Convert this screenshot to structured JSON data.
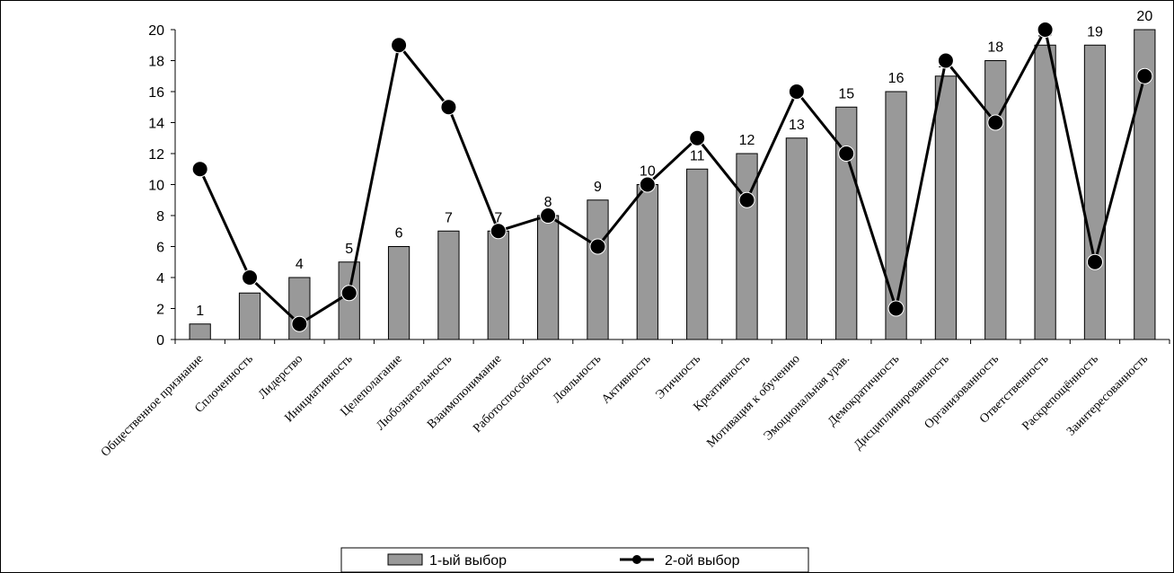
{
  "chart_data": {
    "type": "bar",
    "categories": [
      "Общественное признание",
      "Сплоченность",
      "Лидерство",
      "Инициативность",
      "Целеполагание",
      "Любознательность",
      "Взаимопонимание",
      "Работоспособность",
      "Лояльность",
      "Активность",
      "Этичность",
      "Креативность",
      "Мотивация к обучению",
      "Эмоциональная урав.",
      "Демократичность",
      "Дисциплинированность",
      "Организованность",
      "Ответственность",
      "Раскрепощённость",
      "Заинтересованность"
    ],
    "series": [
      {
        "name": "1-ый выбор",
        "type": "bar",
        "color": "#999999",
        "values": [
          1,
          3,
          4,
          5,
          6,
          7,
          7,
          8,
          9,
          10,
          11,
          12,
          13,
          15,
          16,
          17,
          18,
          19,
          19,
          20
        ]
      },
      {
        "name": "2-ой выбор",
        "type": "line",
        "color": "#000000",
        "values": [
          11,
          4,
          1,
          3,
          19,
          15,
          7,
          8,
          6,
          10,
          13,
          9,
          16,
          12,
          2,
          18,
          14,
          20,
          5,
          17
        ]
      }
    ],
    "ylim": [
      0,
      20
    ],
    "yticks": [
      0,
      2,
      4,
      6,
      8,
      10,
      12,
      14,
      16,
      18,
      20
    ],
    "grid": false,
    "legend": "bottom"
  }
}
